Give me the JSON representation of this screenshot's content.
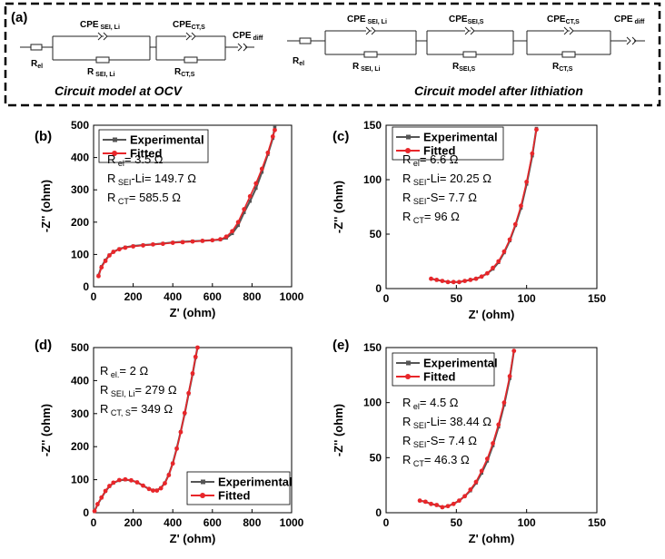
{
  "figure": {
    "panel_a": {
      "label": "(a)",
      "circuit_ocv": {
        "caption": "Circuit model at OCV",
        "r_el": {
          "main": "R",
          "sub": "el"
        },
        "cpe_sei": {
          "main": "CPE",
          "sub": " SEI, Li"
        },
        "r_sei": {
          "main": "R",
          "sub": " SEI, Li"
        },
        "cpe_ct": {
          "main": "CPE",
          "sub": "CT,S"
        },
        "r_ct": {
          "main": "R",
          "sub": "CT,S"
        },
        "cpe_diff": {
          "main": "CPE",
          "sub": " diff"
        }
      },
      "circuit_lith": {
        "caption": "Circuit model after lithiation",
        "r_el": {
          "main": "R",
          "sub": "el"
        },
        "cpe_sei_li": {
          "main": "CPE",
          "sub": " SEI, Li"
        },
        "r_sei_li": {
          "main": "R",
          "sub": " SEI, Li"
        },
        "cpe_sei_s": {
          "main": "CPE",
          "sub": "SEI,S"
        },
        "r_sei_s": {
          "main": "R",
          "sub": "SEI,S"
        },
        "cpe_ct": {
          "main": "CPE",
          "sub": "CT,S"
        },
        "r_ct": {
          "main": "R",
          "sub": "CT,S"
        },
        "cpe_diff": {
          "main": "CPE",
          "sub": " diff"
        }
      }
    }
  },
  "colors": {
    "experimental": "#555555",
    "fitted": "#e8262a"
  },
  "chart_data": [
    {
      "label": "(b)",
      "type": "scatter",
      "xlabel": "Z' (ohm)",
      "ylabel": "-Z'' (ohm)",
      "xlim": [
        0,
        1000
      ],
      "ylim": [
        0,
        500
      ],
      "xticks": [
        "0",
        "200",
        "400",
        "600",
        "800",
        "1000"
      ],
      "yticks": [
        "0",
        "100",
        "200",
        "300",
        "400",
        "500"
      ],
      "legend": "top-left",
      "annotations": [
        {
          "main": "R",
          "sub": " el",
          "rest": "= 3.5 Ω"
        },
        {
          "main": "R",
          "sub": " SEI",
          "rest": "-Li= 149.7 Ω"
        },
        {
          "main": "R",
          "sub": " CT",
          "rest": "= 585.5 Ω"
        }
      ],
      "series": [
        {
          "name": "Experimental",
          "x": [
            25,
            40,
            60,
            80,
            100,
            130,
            160,
            200,
            250,
            300,
            350,
            400,
            450,
            500,
            550,
            600,
            640,
            670,
            700,
            730,
            760,
            790,
            820,
            850,
            880,
            905,
            915
          ],
          "y": [
            35,
            62,
            82,
            98,
            108,
            117,
            122,
            126,
            129,
            131,
            134,
            137,
            139,
            141,
            142,
            144,
            146,
            151,
            165,
            190,
            230,
            265,
            305,
            355,
            410,
            460,
            495
          ]
        },
        {
          "name": "Fitted",
          "x": [
            25,
            40,
            60,
            80,
            100,
            130,
            160,
            200,
            250,
            300,
            350,
            400,
            450,
            500,
            550,
            600,
            640,
            670,
            700,
            730,
            760,
            790,
            820,
            850,
            880,
            905,
            915
          ],
          "y": [
            33,
            60,
            80,
            97,
            108,
            116,
            121,
            125,
            128,
            131,
            133,
            136,
            138,
            140,
            142,
            144,
            147,
            155,
            172,
            200,
            240,
            280,
            320,
            365,
            415,
            465,
            485
          ]
        }
      ]
    },
    {
      "label": "(c)",
      "type": "scatter",
      "xlabel": "Z' (ohm)",
      "ylabel": "-Z'' (ohm)",
      "xlim": [
        0,
        150
      ],
      "ylim": [
        0,
        150
      ],
      "xticks": [
        "0",
        "50",
        "100",
        "150"
      ],
      "yticks": [
        "0",
        "50",
        "100",
        "150"
      ],
      "legend": "top-left",
      "annotations": [
        {
          "main": "R",
          "sub": " el",
          "rest": "= 6.6 Ω"
        },
        {
          "main": "R",
          "sub": " SEI",
          "rest": "-Li= 20.25 Ω"
        },
        {
          "main": "R",
          "sub": " SEI",
          "rest": "-S= 7.7 Ω"
        },
        {
          "main": "R",
          "sub": " CT",
          "rest": "= 96 Ω"
        }
      ],
      "series": [
        {
          "name": "Experimental",
          "x": [
            32,
            36,
            40,
            44,
            48,
            52,
            56,
            60,
            64,
            68,
            72,
            76,
            80,
            84,
            88,
            92,
            96,
            100,
            104,
            107
          ],
          "y": [
            9,
            8,
            7,
            6,
            6,
            6,
            7,
            8,
            9,
            11,
            14,
            18,
            24,
            33,
            44,
            58,
            74,
            96,
            122,
            147
          ]
        },
        {
          "name": "Fitted",
          "x": [
            32,
            36,
            40,
            44,
            48,
            52,
            56,
            60,
            64,
            68,
            72,
            76,
            80,
            84,
            88,
            92,
            96,
            100,
            104,
            107
          ],
          "y": [
            9,
            8,
            7,
            6,
            6,
            6,
            7,
            8,
            9,
            11,
            14,
            19,
            25,
            34,
            45,
            59,
            76,
            98,
            124,
            146
          ]
        }
      ]
    },
    {
      "label": "(d)",
      "type": "scatter",
      "xlabel": "Z' (ohm)",
      "ylabel": "-Z'' (ohm)",
      "xlim": [
        0,
        1000
      ],
      "ylim": [
        0,
        500
      ],
      "xticks": [
        "0",
        "200",
        "400",
        "600",
        "800",
        "1000"
      ],
      "yticks": [
        "0",
        "100",
        "200",
        "300",
        "400",
        "500"
      ],
      "legend": "bottom-right",
      "annotations": [
        {
          "main": "R",
          "sub": " el.",
          "rest": "= 2 Ω"
        },
        {
          "main": "R",
          "sub": " SEI, Li",
          "rest": "= 279 Ω"
        },
        {
          "main": "R",
          "sub": " CT, S",
          "rest": "= 349 Ω"
        }
      ],
      "series": [
        {
          "name": "Experimental",
          "x": [
            5,
            20,
            40,
            60,
            80,
            100,
            130,
            160,
            190,
            220,
            250,
            280,
            300,
            320,
            340,
            360,
            380,
            400,
            420,
            440,
            460,
            480,
            500,
            515,
            525
          ],
          "y": [
            5,
            25,
            45,
            65,
            80,
            90,
            98,
            100,
            98,
            92,
            82,
            72,
            68,
            68,
            75,
            90,
            115,
            150,
            195,
            245,
            300,
            360,
            420,
            470,
            500
          ]
        },
        {
          "name": "Fitted",
          "x": [
            5,
            20,
            40,
            60,
            80,
            100,
            130,
            160,
            190,
            220,
            250,
            280,
            300,
            320,
            340,
            360,
            380,
            400,
            420,
            440,
            460,
            480,
            500,
            515,
            525
          ],
          "y": [
            5,
            26,
            46,
            66,
            81,
            91,
            99,
            101,
            98,
            92,
            82,
            72,
            67,
            67,
            74,
            89,
            114,
            149,
            194,
            244,
            302,
            362,
            422,
            472,
            500
          ]
        }
      ]
    },
    {
      "label": "(e)",
      "type": "scatter",
      "xlabel": "Z' (ohm)",
      "ylabel": "-Z'' (ohm)",
      "xlim": [
        0,
        150
      ],
      "ylim": [
        0,
        150
      ],
      "xticks": [
        "0",
        "50",
        "100",
        "150"
      ],
      "yticks": [
        "0",
        "50",
        "100",
        "150"
      ],
      "legend": "top-left",
      "annotations": [
        {
          "main": "R",
          "sub": " el",
          "rest": "= 4.5 Ω"
        },
        {
          "main": "R",
          "sub": " SEI",
          "rest": "-Li= 38.44 Ω"
        },
        {
          "main": "R",
          "sub": " SEI",
          "rest": "-S= 7.4 Ω"
        },
        {
          "main": "R",
          "sub": " CT",
          "rest": "= 46.3 Ω"
        }
      ],
      "series": [
        {
          "name": "Experimental",
          "x": [
            24,
            28,
            32,
            36,
            40,
            44,
            48,
            52,
            56,
            60,
            64,
            68,
            72,
            76,
            80,
            84,
            88,
            91
          ],
          "y": [
            11,
            10,
            8,
            7,
            5,
            6,
            8,
            11,
            15,
            20,
            27,
            36,
            47,
            61,
            78,
            98,
            122,
            147
          ]
        },
        {
          "name": "Fitted",
          "x": [
            24,
            28,
            32,
            36,
            40,
            44,
            48,
            52,
            56,
            60,
            64,
            68,
            72,
            76,
            80,
            84,
            88,
            91
          ],
          "y": [
            11,
            10,
            8,
            7,
            5,
            6,
            8,
            11,
            15,
            21,
            28,
            38,
            49,
            63,
            80,
            100,
            124,
            147
          ]
        }
      ]
    }
  ]
}
